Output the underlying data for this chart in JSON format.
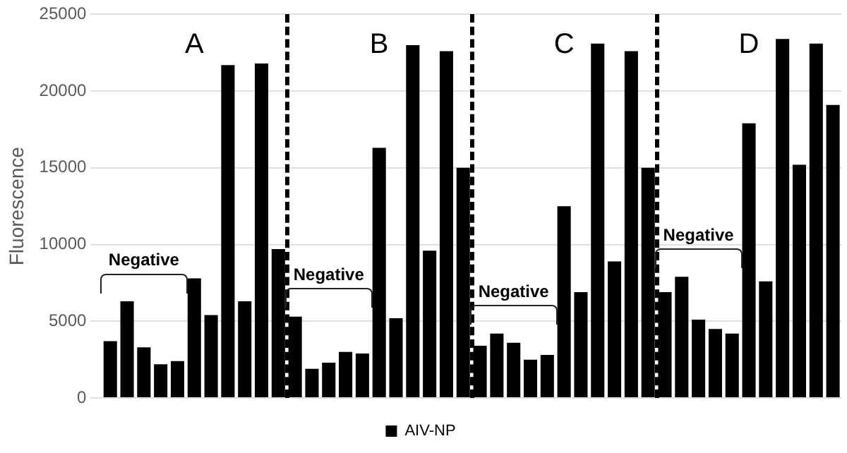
{
  "chart_data": {
    "type": "bar",
    "ylabel": "Fluorescence",
    "categories": [
      null,
      null,
      null,
      null,
      null,
      null,
      null,
      null,
      null,
      null,
      null,
      null,
      null,
      null,
      null,
      null,
      null,
      null,
      null,
      null,
      null,
      null,
      null,
      null,
      null,
      null,
      null,
      null,
      null,
      null,
      null,
      null,
      null,
      null,
      null,
      null,
      null,
      null,
      null,
      null,
      null,
      null,
      null,
      null
    ],
    "series": [
      {
        "name": "AIV-NP",
        "color": "#000000",
        "values": [
          3700,
          6300,
          3300,
          2200,
          2400,
          7800,
          5400,
          21700,
          6300,
          21800,
          9700,
          5300,
          1900,
          2300,
          3000,
          2900,
          16300,
          5200,
          23000,
          9600,
          22600,
          15000,
          3400,
          4200,
          3600,
          2500,
          2800,
          12500,
          6900,
          23100,
          8900,
          22600,
          15000,
          6900,
          7900,
          5100,
          4500,
          4200,
          17900,
          7600,
          23400,
          15200,
          23100,
          19100
        ]
      }
    ],
    "ylim": [
      0,
      25000
    ],
    "yticks": [
      0,
      5000,
      10000,
      15000,
      20000,
      25000
    ],
    "grid": "y",
    "legend": "bottom",
    "annotations": [
      "A",
      "B",
      "C",
      "D",
      "Negative",
      "Negative",
      "Negative",
      "Negative"
    ]
  }
}
